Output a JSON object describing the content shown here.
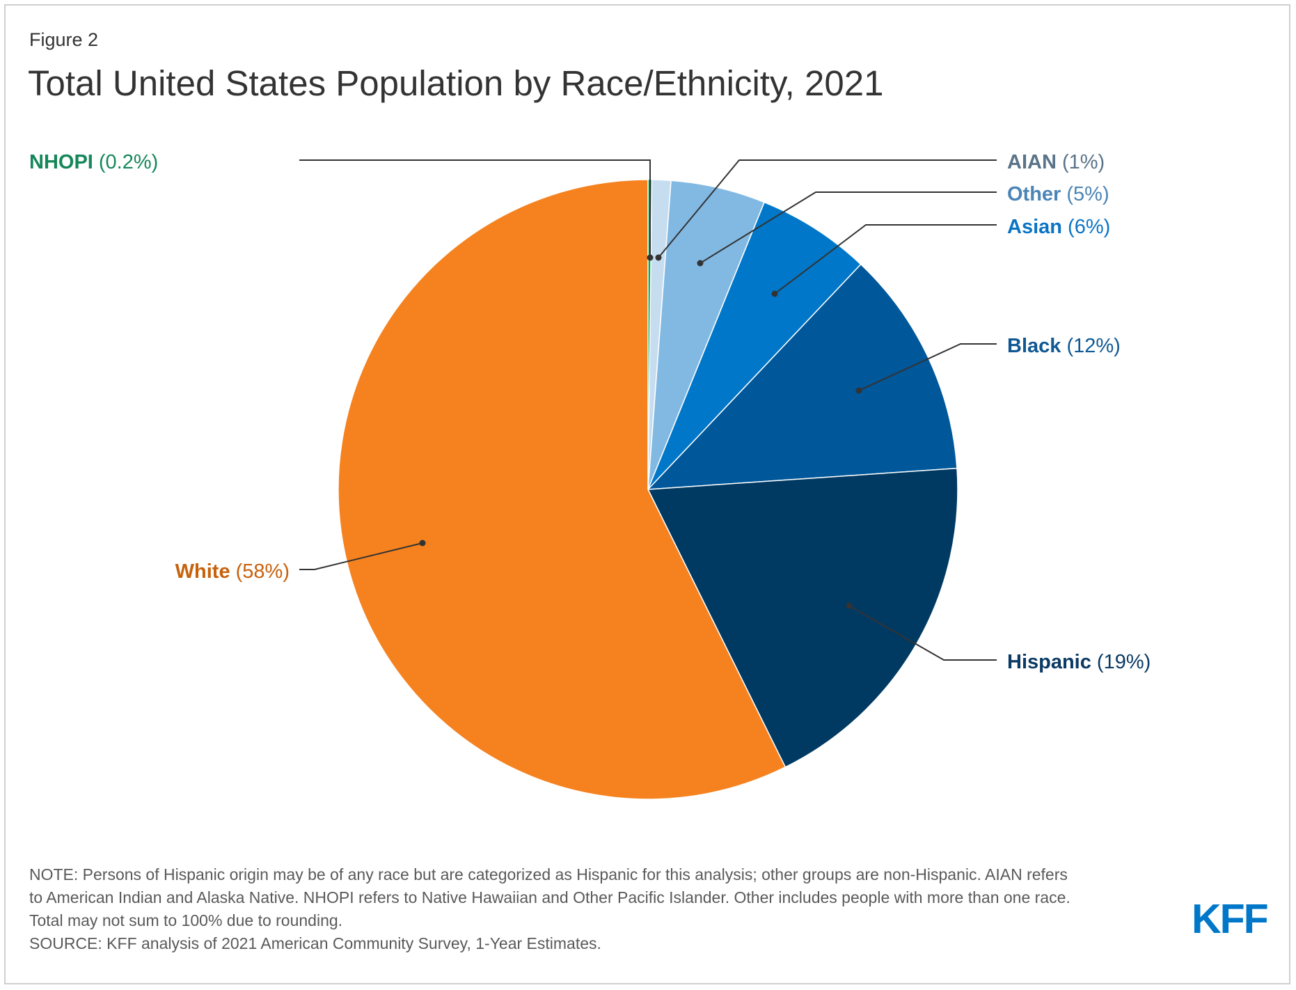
{
  "figure_label": "Figure 2",
  "title": "Total United States Population by Race/Ethnicity, 2021",
  "chart_data": {
    "type": "pie",
    "title": "Total United States Population by Race/Ethnicity, 2021",
    "unit": "%",
    "slices": [
      {
        "name": "NHOPI",
        "value": 0.2,
        "display": "(0.2%)",
        "color": "#00a651",
        "label_color": "#15875a"
      },
      {
        "name": "AIAN",
        "value": 1,
        "display": "(1%)",
        "color": "#c6ddf0",
        "label_color": "#5a7388"
      },
      {
        "name": "Other",
        "value": 5,
        "display": "(5%)",
        "color": "#82b9e3",
        "label_color": "#4b84b6"
      },
      {
        "name": "Asian",
        "value": 6,
        "display": "(6%)",
        "color": "#0077c8",
        "label_color": "#0a74c4"
      },
      {
        "name": "Black",
        "value": 12,
        "display": "(12%)",
        "color": "#00579a",
        "label_color": "#105894"
      },
      {
        "name": "Hispanic",
        "value": 19,
        "display": "(19%)",
        "color": "#003a63",
        "label_color": "#0b3a64"
      },
      {
        "name": "White",
        "value": 58,
        "display": "(58%)",
        "color": "#f5821f",
        "label_color": "#c8610c"
      }
    ]
  },
  "notes": {
    "line1": "NOTE: Persons of Hispanic origin may be of any race but are categorized as Hispanic for this analysis; other groups are non-Hispanic. AIAN refers",
    "line2": "to American Indian and Alaska Native. NHOPI refers to Native Hawaiian and Other Pacific Islander. Other includes people with more than one race.",
    "line3": "Total may not sum to 100% due to rounding.",
    "source": "SOURCE: KFF analysis of 2021 American Community Survey, 1-Year Estimates."
  },
  "logo_text": "KFF"
}
